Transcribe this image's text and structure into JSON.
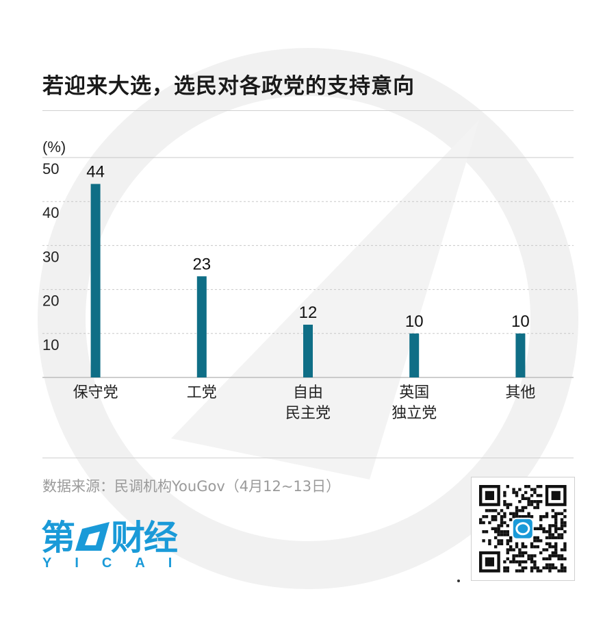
{
  "title": "若迎来大选，选民对各政党的支持意向",
  "source": "数据来源：民调机构YouGov（4月12~13日）",
  "logo": {
    "main": "第一财经",
    "sub": "YICAI"
  },
  "colors": {
    "bar": "#0f6e86",
    "brand": "#1a9ad8",
    "grid": "#c8c8c8"
  },
  "chart_data": {
    "type": "bar",
    "unit_label": "(%)",
    "ylim": [
      0,
      50
    ],
    "yticks": [
      10,
      20,
      30,
      40,
      50
    ],
    "categories": [
      [
        "保守党"
      ],
      [
        "工党"
      ],
      [
        "自由",
        "民主党"
      ],
      [
        "英国",
        "独立党"
      ],
      [
        "其他"
      ]
    ],
    "values": [
      44,
      23,
      12,
      10,
      10
    ],
    "data_labels": [
      "44",
      "23",
      "12",
      "10",
      "10"
    ],
    "grid": true
  }
}
